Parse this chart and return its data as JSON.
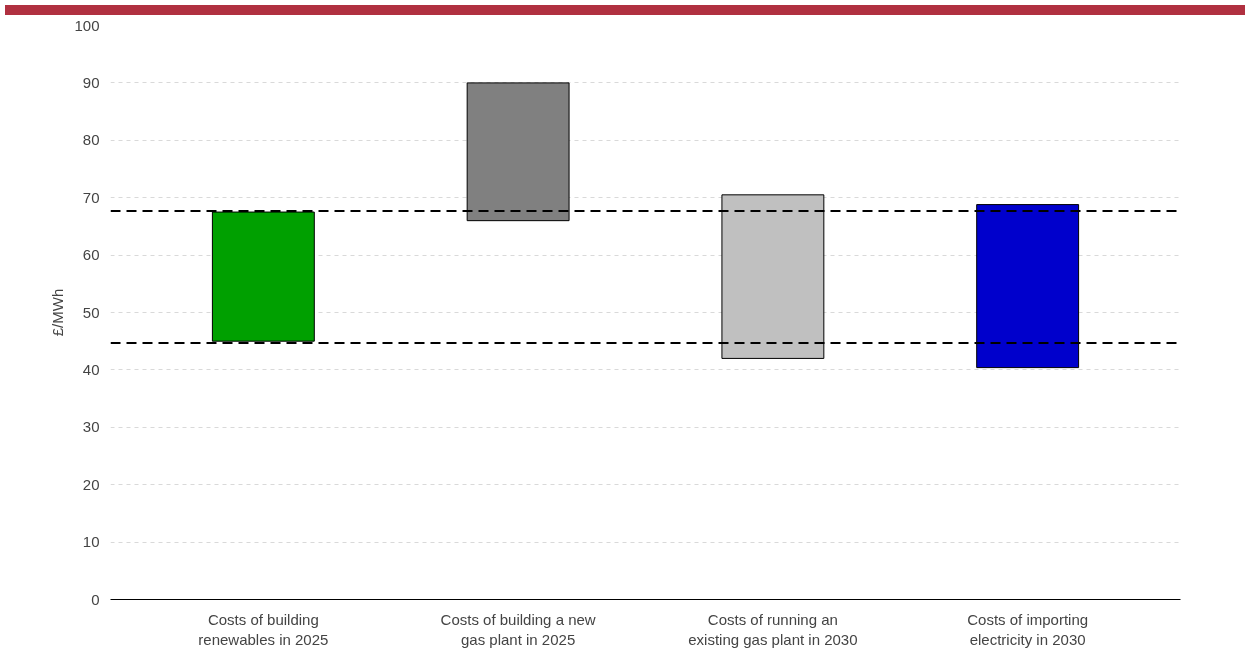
{
  "chart_data": {
    "type": "bar",
    "ylabel": "£/MWh",
    "categories": [
      "Costs of building\nrenewables in 2025",
      "Costs of building a new\ngas plant in 2025",
      "Costs of running an\nexisting gas plant in 2030",
      "Costs of importing\nelectricity in 2030"
    ],
    "base": [
      45,
      66,
      42,
      40.4
    ],
    "values": [
      22.5,
      24,
      28.5,
      28.4
    ],
    "colors": [
      "#00a000",
      "#808080",
      "#c0c0c0",
      "#0000cc"
    ],
    "ylim": [
      0,
      100
    ],
    "yticks": [
      0,
      10,
      20,
      30,
      40,
      50,
      60,
      70,
      80,
      90,
      100
    ],
    "grid": "y",
    "ref_lines": [
      {
        "axis": "y",
        "value": 67.7,
        "color": "#000000",
        "line_style": "dashed"
      },
      {
        "axis": "y",
        "value": 44.7,
        "color": "#000000",
        "line_style": "dashed"
      }
    ]
  }
}
